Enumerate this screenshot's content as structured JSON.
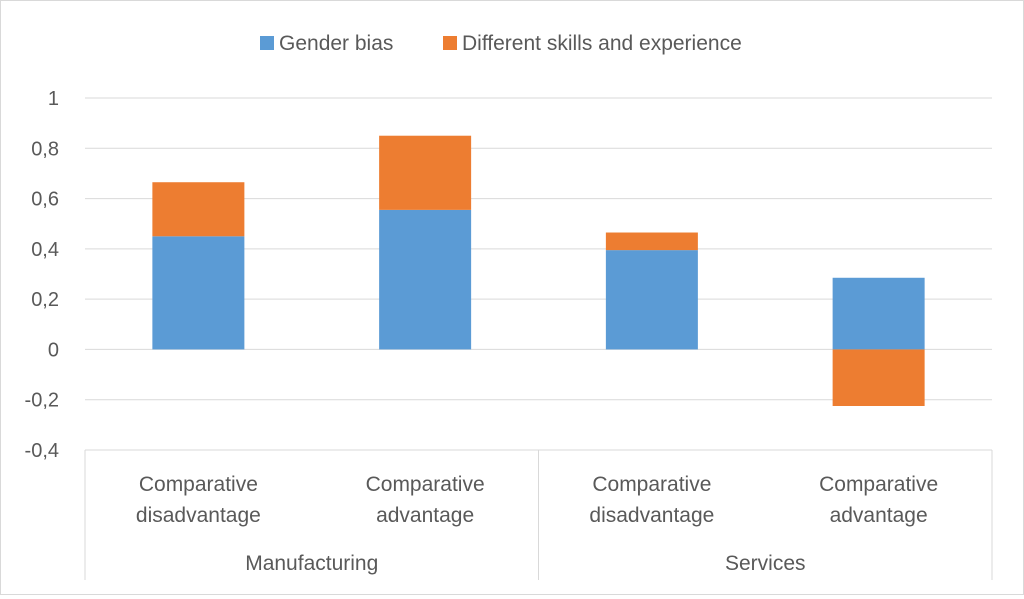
{
  "chart_data": {
    "type": "bar",
    "stacked": true,
    "legend": "top",
    "grid": true,
    "ylim": [
      -0.4,
      1
    ],
    "yticks": [
      "1",
      "0,8",
      "0,6",
      "0,4",
      "0,2",
      "0",
      "-0,2",
      "-0,4"
    ],
    "ytick_values": [
      1,
      0.8,
      0.6,
      0.4,
      0.2,
      0,
      -0.2,
      -0.4
    ],
    "categories": [
      [
        "Comparative",
        "disadvantage"
      ],
      [
        "Comparative",
        "advantage"
      ],
      [
        "Comparative",
        "disadvantage"
      ],
      [
        "Comparative",
        "advantage"
      ]
    ],
    "groups": [
      {
        "label": "Manufacturing",
        "categories": [
          0,
          1
        ]
      },
      {
        "label": "Services",
        "categories": [
          2,
          3
        ]
      }
    ],
    "series": [
      {
        "name": "Gender bias",
        "color": "#5b9bd5",
        "values": [
          0.45,
          0.555,
          0.395,
          0.285
        ]
      },
      {
        "name": "Different skills and experience",
        "color": "#ed7d31",
        "values": [
          0.215,
          0.295,
          0.07,
          -0.225
        ]
      }
    ],
    "colors": {
      "grid": "#d9d9d9",
      "text": "#595959",
      "border": "#d9d9d9"
    }
  }
}
